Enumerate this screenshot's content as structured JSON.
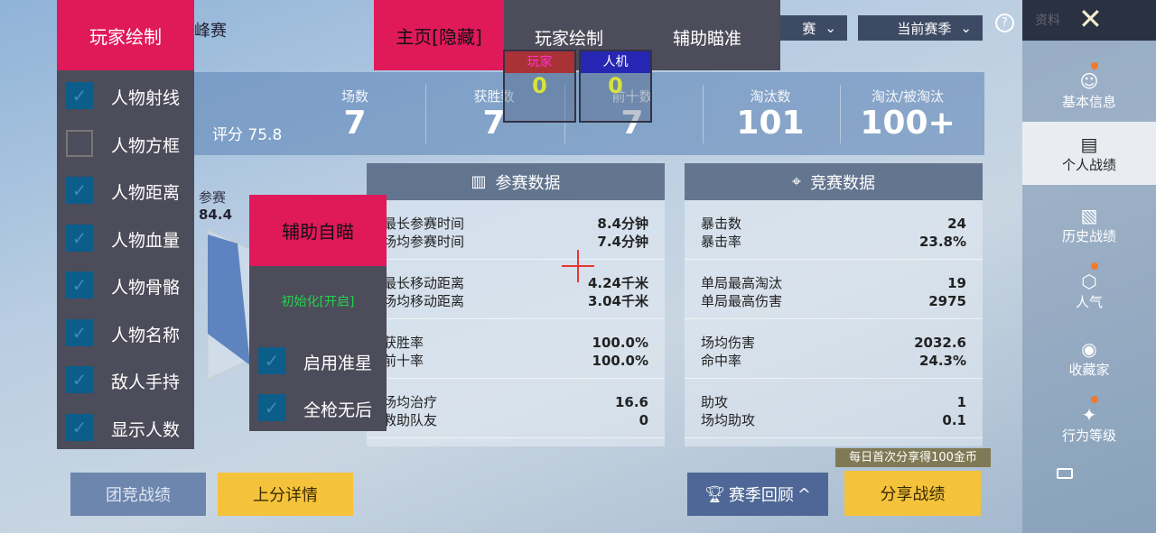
{
  "filters": {
    "mode": "赛",
    "season": "当前赛季"
  },
  "sidebar": {
    "top_label": "资料",
    "items": [
      {
        "label": "基本信息",
        "icon": "profile-icon",
        "dot": true
      },
      {
        "label": "个人战绩",
        "icon": "chart-doc-icon",
        "active": true
      },
      {
        "label": "历史战绩",
        "icon": "history-doc-icon"
      },
      {
        "label": "人气",
        "icon": "popularity-icon",
        "dot": true
      },
      {
        "label": "收藏家",
        "icon": "collector-badge-icon"
      },
      {
        "label": "行为等级",
        "icon": "behavior-level-icon",
        "dot": true
      }
    ]
  },
  "partial_title": "峰赛",
  "stats": {
    "rating": "评分 75.8",
    "items": [
      {
        "label": "场数",
        "value": "7"
      },
      {
        "label": "获胜数",
        "value": "7"
      },
      {
        "label": "前十数",
        "value": "7"
      },
      {
        "label": "淘汰数",
        "value": "101"
      },
      {
        "label": "淘汰/被淘汰",
        "value": "100+"
      }
    ]
  },
  "radar": {
    "label": "参赛",
    "value": "84.4"
  },
  "participation": {
    "title": "参赛数据",
    "groups": [
      [
        [
          "最长参赛时间",
          "8.4分钟"
        ],
        [
          "场均参赛时间",
          "7.4分钟"
        ]
      ],
      [
        [
          "最长移动距离",
          "4.24千米"
        ],
        [
          "场均移动距离",
          "3.04千米"
        ]
      ],
      [
        [
          "获胜率",
          "100.0%"
        ],
        [
          "前十率",
          "100.0%"
        ]
      ],
      [
        [
          "场均治疗",
          "16.6"
        ],
        [
          "救助队友",
          "0"
        ]
      ]
    ]
  },
  "competition": {
    "title": "竞赛数据",
    "groups": [
      [
        [
          "暴击数",
          "24"
        ],
        [
          "暴击率",
          "23.8%"
        ]
      ],
      [
        [
          "单局最高淘汰",
          "19"
        ],
        [
          "单局最高伤害",
          "2975"
        ]
      ],
      [
        [
          "场均伤害",
          "2032.6"
        ],
        [
          "命中率",
          "24.3%"
        ]
      ],
      [
        [
          "助攻",
          "1"
        ],
        [
          "场均助攻",
          "0.1"
        ]
      ]
    ]
  },
  "buttons": {
    "team": "团竞战绩",
    "rank": "上分详情",
    "season_review": "赛季回顾",
    "share": "分享战绩",
    "share_tip": "每日首次分享得100金币"
  },
  "overlay": {
    "player_draw_title": "玩家绘制",
    "home_tab": "主页[隐藏]",
    "tab_player": "玩家绘制",
    "tab_aim": "辅助瞄准",
    "player_label": "玩家",
    "player_count": "0",
    "bot_label": "人机",
    "bot_count": "0",
    "draw_options": [
      {
        "label": "人物射线",
        "checked": true
      },
      {
        "label": "人物方框",
        "checked": false
      },
      {
        "label": "人物距离",
        "checked": true
      },
      {
        "label": "人物血量",
        "checked": true
      },
      {
        "label": "人物骨骼",
        "checked": true
      },
      {
        "label": "人物名称",
        "checked": true
      },
      {
        "label": "敌人手持",
        "checked": true
      },
      {
        "label": "显示人数",
        "checked": true
      }
    ],
    "aim_title": "辅助自瞄",
    "aim_status": "初始化[开启]",
    "aim_options": [
      {
        "label": "启用准星",
        "checked": true
      },
      {
        "label": "全枪无后",
        "checked": true
      }
    ]
  },
  "colors": {
    "accent_pink": "#e0195a",
    "menu_bg": "#4d4c5a",
    "share_yellow": "#f5c33b",
    "status_green": "#22d34a"
  }
}
